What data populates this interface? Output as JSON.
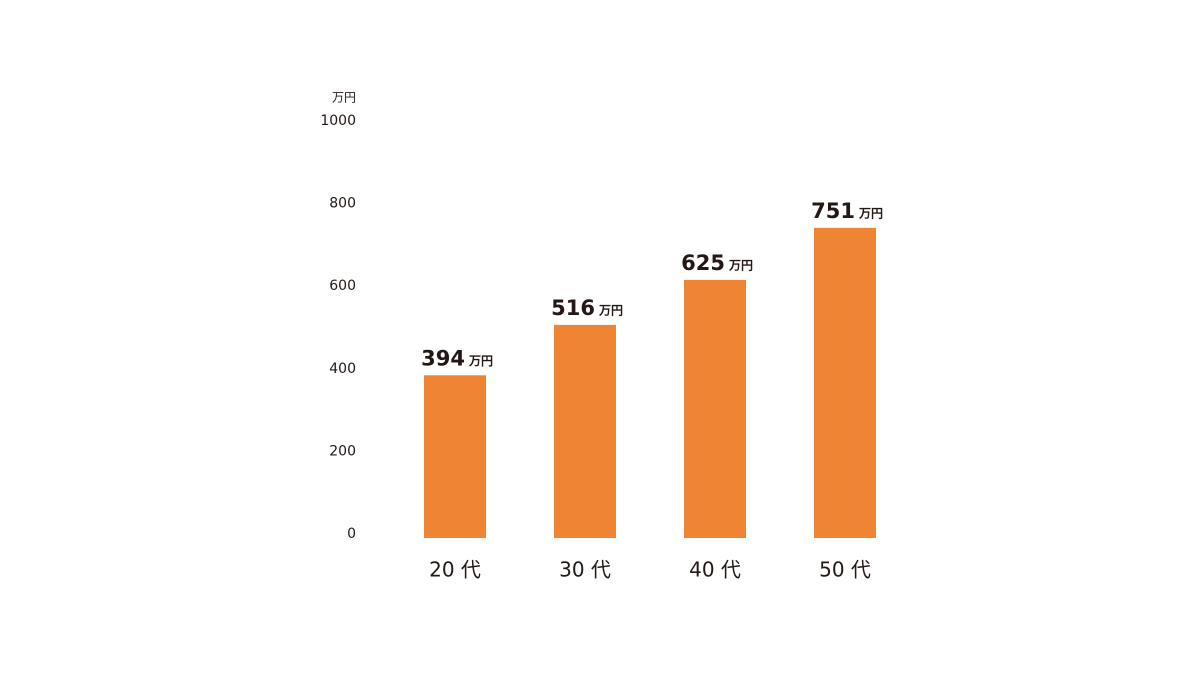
{
  "chart_data": {
    "type": "bar",
    "ylabel": "万円",
    "categories": [
      "20 代",
      "30 代",
      "40 代",
      "50 代"
    ],
    "values": [
      394,
      516,
      625,
      751
    ],
    "color": "#ef8533",
    "ylim": [
      0,
      1000
    ],
    "yticks": [
      0,
      200,
      400,
      600,
      800,
      1000
    ],
    "grid": false
  }
}
